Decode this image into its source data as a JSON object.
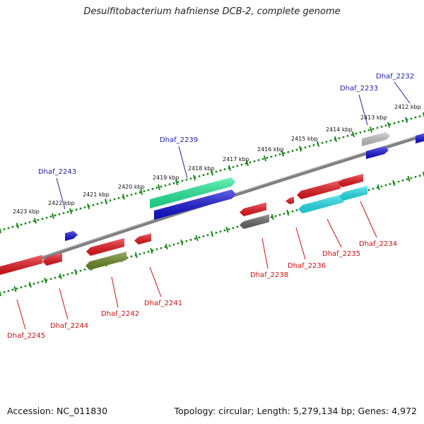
{
  "title": "Desulfitobacterium hafniense DCB-2, complete genome",
  "footer": {
    "accession": "Accession: NC_011830",
    "summary": "Topology: circular; Length: 5,279,134 bp; Genes: 4,972"
  },
  "colors": {
    "red": "#e8141c",
    "blue": "#1010d8",
    "green_teal": "#22ee99",
    "cyan": "#22e4ee",
    "olive": "#6a8a22",
    "dark_gray": "#666666",
    "light_gray": "#c4c4c4",
    "axis": "#808080",
    "ticks": "#1a8a1a",
    "label_blue": "#2222aa",
    "label_red": "#cc1111"
  },
  "scale": {
    "unit": "kbp",
    "labels": [
      "2423 kbp",
      "2422 kbp",
      "2421 kbp",
      "2420 kbp",
      "2419 kbp",
      "2418 kbp",
      "2417 kbp",
      "2416 kbp",
      "2415 kbp",
      "2414 kbp",
      "2413 kbp",
      "2412 kbp"
    ]
  },
  "genes": [
    {
      "name": "Dhaf_2232",
      "strand": "+",
      "color": "blue",
      "label_side": "top"
    },
    {
      "name": "Dhaf_2233",
      "strand": "+",
      "color": "blue",
      "label_side": "top"
    },
    {
      "name": "Dhaf_2239",
      "strand": "+",
      "color": "blue",
      "label_side": "top"
    },
    {
      "name": "Dhaf_2243",
      "strand": "+",
      "color": "blue",
      "label_side": "top"
    },
    {
      "name": "Dhaf_2234",
      "strand": "-",
      "color": "red",
      "label_side": "bottom"
    },
    {
      "name": "Dhaf_2235",
      "strand": "-",
      "color": "red",
      "label_side": "bottom"
    },
    {
      "name": "Dhaf_2236",
      "strand": "-",
      "color": "red",
      "label_side": "bottom"
    },
    {
      "name": "Dhaf_2238",
      "strand": "-",
      "color": "red",
      "label_side": "bottom"
    },
    {
      "name": "Dhaf_2241",
      "strand": "-",
      "color": "red",
      "label_side": "bottom"
    },
    {
      "name": "Dhaf_2242",
      "strand": "-",
      "color": "red",
      "label_side": "bottom"
    },
    {
      "name": "Dhaf_2244",
      "strand": "-",
      "color": "red",
      "label_side": "bottom"
    },
    {
      "name": "Dhaf_2245",
      "strand": "-",
      "color": "red",
      "label_side": "bottom"
    }
  ]
}
